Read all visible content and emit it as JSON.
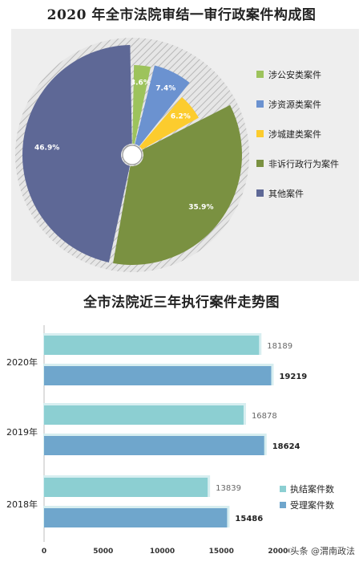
{
  "chart_data": [
    {
      "type": "pie",
      "title": "2020 年全市法院审结一审行政案件构成图",
      "slices": [
        {
          "label": "涉公安类案件",
          "value": 3.6,
          "display": "3.6%",
          "color": "#9dc35c"
        },
        {
          "label": "涉资源类案件",
          "value": 7.4,
          "display": "7.4%",
          "color": "#6b92d0"
        },
        {
          "label": "涉城建类案件",
          "value": 6.2,
          "display": "6.2%",
          "color": "#fccc2e"
        },
        {
          "label": "非诉行政行为案件",
          "value": 35.9,
          "display": "35.9%",
          "color": "#7a9141"
        },
        {
          "label": "其他案件",
          "value": 46.9,
          "display": "46.9%",
          "color": "#5e6896"
        }
      ],
      "legend_position": "right"
    },
    {
      "type": "bar",
      "orientation": "horizontal",
      "title": "全市法院近三年执行案件走势图",
      "categories": [
        "2020年",
        "2019年",
        "2018年"
      ],
      "series": [
        {
          "name": "执结案件数",
          "values": [
            18189,
            16878,
            13839
          ],
          "color": "#8ccfd2"
        },
        {
          "name": "受理案件数",
          "values": [
            19219,
            18624,
            15486
          ],
          "color": "#6fa6cc"
        }
      ],
      "xlim": [
        0,
        20000
      ],
      "xticks": [
        0,
        5000,
        10000,
        15000,
        20000
      ],
      "xtick_labels": [
        "0",
        "5000",
        "10000",
        "15000",
        "20000"
      ],
      "legend_position": "bottom-right"
    }
  ],
  "watermark": "头条 @渭南政法"
}
